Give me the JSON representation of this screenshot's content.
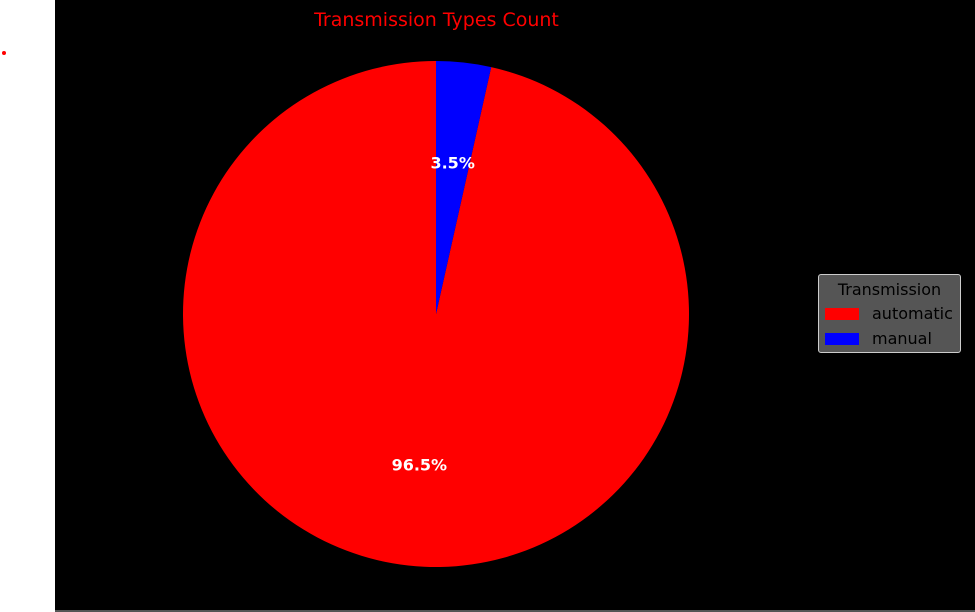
{
  "chart_data": {
    "type": "pie",
    "title": "Transmission Types Count",
    "categories": [
      "automatic",
      "manual"
    ],
    "values": [
      96.5,
      3.5
    ],
    "labels": [
      "96.5%",
      "3.5%"
    ],
    "colors": [
      "#ff0000",
      "#0000ff"
    ],
    "legend": {
      "title": "Transmission",
      "placement": "center-right",
      "entries": [
        "automatic",
        "manual"
      ]
    },
    "start": "top",
    "direction": "counterclockwise"
  },
  "style": {
    "background": "#000000",
    "title_color": "#ff0000",
    "legend_background": "#555555"
  }
}
